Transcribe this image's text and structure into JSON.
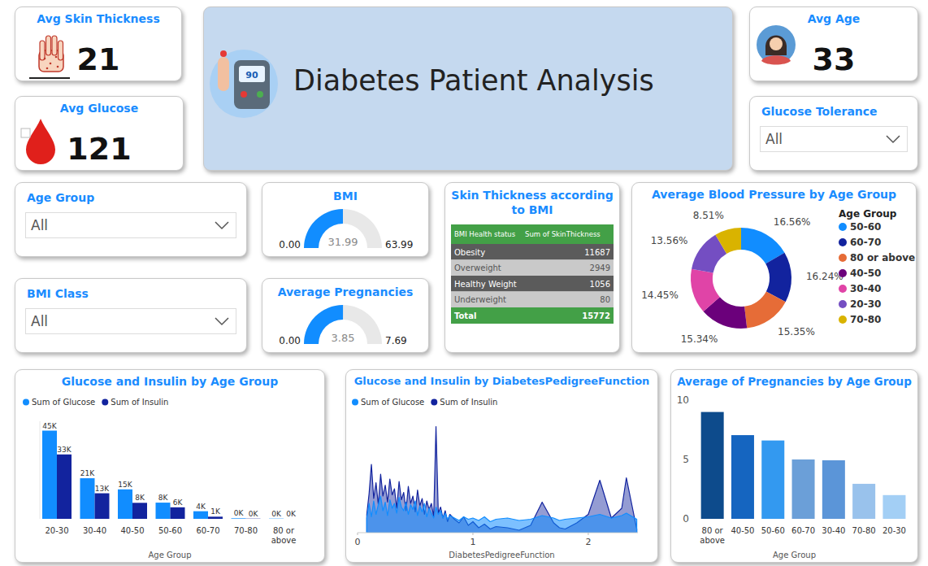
{
  "header": {
    "title": "Diabetes Patient Analysis",
    "icon_text": "90"
  },
  "cards": [
    {
      "title": "Avg Skin Thickness",
      "value": 21
    },
    {
      "title": "Avg Glucose",
      "value": 121
    },
    {
      "title": "Avg Age",
      "value": 33
    }
  ],
  "slicers": [
    {
      "title": "Glucose Tolerance",
      "selection": "All"
    },
    {
      "title": "Age Group",
      "selection": "All"
    },
    {
      "title": "BMI Class",
      "selection": "All"
    }
  ],
  "chart_data": [
    {
      "type": "gauge",
      "title": "BMI",
      "values": [
        31.99
      ],
      "ylim": [
        0,
        63.99
      ],
      "yticks": [
        {
          "value": 0,
          "label": "0.00"
        },
        63.99
      ],
      "color": "#118DFF"
    },
    {
      "type": "gauge",
      "title": "Average Pregnancies",
      "values": [
        3.85
      ],
      "ylim": [
        0,
        7.69
      ],
      "yticks": [
        {
          "value": 0,
          "label": "0.00"
        },
        7.69
      ],
      "color": "#118DFF"
    },
    {
      "type": "table",
      "title": "Skin Thickness according to BMI",
      "columns": [
        "BMI Health status",
        "Sum of SkinThickness"
      ],
      "rows": [
        [
          "Obesity",
          11687
        ],
        [
          "Overweight",
          2949
        ],
        [
          "Healthy Weight",
          1056
        ],
        [
          "Underweight",
          80
        ]
      ],
      "total": [
        "Total",
        15772
      ]
    },
    {
      "type": "donut",
      "title": "Average Blood Pressure by Age Group",
      "legend_title": "Age Group",
      "categories": [
        "50-60",
        "60-70",
        "80 or above",
        "40-50",
        "30-40",
        "20-30",
        "70-80"
      ],
      "values": [
        16.56,
        16.24,
        15.35,
        15.34,
        14.45,
        13.56,
        8.51
      ],
      "value_labels": [
        "16.56%",
        "16.24%",
        "15.35%",
        "15.34%",
        "14.45%",
        "13.56%",
        "8.51%"
      ],
      "colors": [
        "#118DFF",
        "#12239E",
        "#E66C37",
        "#6B007B",
        "#E044A7",
        "#744EC2",
        "#D9B300"
      ],
      "legend": "right",
      "data_labels": true
    },
    {
      "type": "bar",
      "title": "Glucose and Insulin by Age Group",
      "x_label": "Age Group",
      "categories": [
        "20-30",
        "30-40",
        "40-50",
        "50-60",
        "60-70",
        "70-80",
        "80 or above"
      ],
      "series": [
        {
          "name": "Sum of Glucose",
          "color": "#118DFF",
          "values": [
            45200,
            20800,
            15100,
            8300,
            3900,
            280,
            134
          ],
          "value_labels": [
            "45K",
            "21K",
            "15K",
            "8K",
            "4K",
            "0K",
            "0K"
          ]
        },
        {
          "name": "Sum of Insulin",
          "color": "#12239E",
          "values": [
            33000,
            13100,
            8200,
            5900,
            1100,
            120,
            0
          ],
          "value_labels": [
            "33K",
            "13K",
            "8K",
            "6K",
            "1K",
            "0K",
            "0K"
          ]
        }
      ],
      "ylim": [
        0,
        50000
      ],
      "tick_labels": "x",
      "legend": "top-left",
      "data_labels": true
    },
    {
      "type": "area",
      "title": "Glucose and Insulin by DiabetesPedigreeFunction",
      "x_label": "DiabetesPedigreeFunction",
      "x": [
        0.08,
        0.1,
        0.12,
        0.14,
        0.16,
        0.18,
        0.2,
        0.22,
        0.24,
        0.26,
        0.28,
        0.3,
        0.32,
        0.34,
        0.36,
        0.38,
        0.4,
        0.42,
        0.44,
        0.46,
        0.48,
        0.5,
        0.52,
        0.54,
        0.56,
        0.58,
        0.6,
        0.62,
        0.64,
        0.66,
        0.68,
        0.7,
        0.72,
        0.74,
        0.76,
        0.78,
        0.8,
        0.84,
        0.88,
        0.92,
        0.96,
        1.0,
        1.05,
        1.1,
        1.15,
        1.2,
        1.3,
        1.4,
        1.5,
        1.6,
        1.7,
        1.75,
        1.8,
        1.9,
        2.0,
        2.1,
        2.2,
        2.29,
        2.33,
        2.42
      ],
      "series": [
        {
          "name": "Sum of Glucose",
          "color": "#118DFF",
          "values": [
            120,
            240,
            130,
            260,
            150,
            230,
            300,
            180,
            250,
            140,
            270,
            200,
            240,
            160,
            290,
            210,
            180,
            250,
            150,
            230,
            190,
            260,
            140,
            220,
            170,
            240,
            130,
            200,
            160,
            120,
            210,
            150,
            180,
            120,
            160,
            110,
            140,
            120,
            100,
            130,
            110,
            120,
            100,
            130,
            90,
            110,
            120,
            100,
            110,
            140,
            120,
            100,
            110,
            120,
            130,
            150,
            120,
            140,
            160,
            110
          ]
        },
        {
          "name": "Sum of Insulin",
          "color": "#12239E",
          "values": [
            150,
            320,
            560,
            280,
            410,
            230,
            480,
            300,
            390,
            250,
            440,
            310,
            360,
            200,
            420,
            270,
            330,
            180,
            380,
            240,
            300,
            170,
            350,
            220,
            280,
            150,
            260,
            190,
            240,
            130,
            870,
            160,
            210,
            120,
            180,
            90,
            150,
            110,
            80,
            130,
            60,
            90,
            40,
            70,
            30,
            50,
            40,
            20,
            60,
            250,
            80,
            40,
            30,
            80,
            150,
            430,
            120,
            200,
            450,
            30
          ]
        }
      ],
      "xlim": [
        0,
        2.43
      ],
      "xticks": [
        0,
        1,
        2
      ],
      "ylim": [
        0,
        1000
      ],
      "tick_labels": "x",
      "legend": "top-left"
    },
    {
      "type": "bar",
      "title": "Average of Pregnancies by Age Group",
      "x_label": "Age Group",
      "categories": [
        "80 or above",
        "40-50",
        "50-60",
        "60-70",
        "30-40",
        "70-80",
        "20-30"
      ],
      "values": [
        9.0,
        7.05,
        6.6,
        5.0,
        4.93,
        2.95,
        2.0
      ],
      "colors": [
        "#0D4B8C",
        "#1565C0",
        "#3399F0",
        "#6B9FD8",
        "#5B95D8",
        "#99C2EC",
        "#A3CFF5"
      ],
      "ylim": [
        0,
        10
      ],
      "yticks": [
        0,
        5,
        10
      ]
    }
  ]
}
